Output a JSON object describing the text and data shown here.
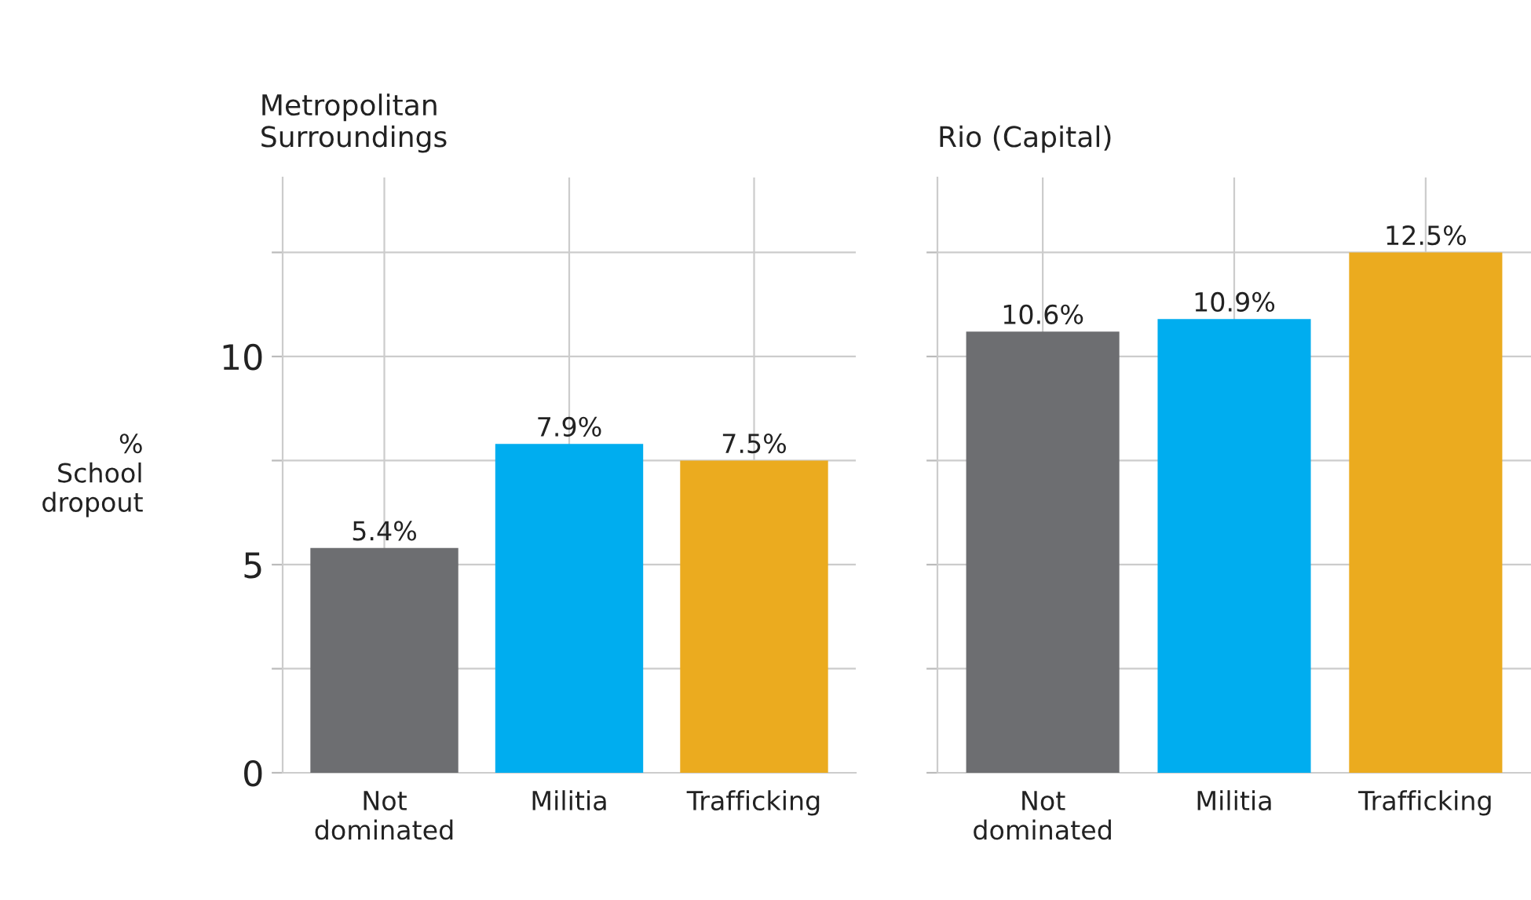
{
  "chart_data": [
    {
      "type": "bar",
      "title": "Metropolitan\nSurroundings",
      "ylabel": "%\nSchool\ndropout",
      "categories": [
        "Not\ndominated",
        "Militia",
        "Trafficking"
      ],
      "values": [
        5.4,
        7.9,
        7.5
      ],
      "colors": [
        "#6d6e71",
        "#00adef",
        "#ebab1f"
      ],
      "value_labels": [
        "5.4%",
        "7.9%",
        "7.5%"
      ],
      "ylim": [
        0,
        14.3
      ],
      "yticks": [
        0,
        {
          "value": 2.5,
          "label": null
        },
        5,
        {
          "value": 7.5,
          "label": null
        },
        10,
        {
          "value": 12.5,
          "label": null
        }
      ],
      "grid": true
    },
    {
      "type": "bar",
      "title": "Rio (Capital)",
      "categories": [
        "Not\ndominated",
        "Militia",
        "Trafficking"
      ],
      "values": [
        10.6,
        10.9,
        12.5
      ],
      "colors": [
        "#6d6e71",
        "#00adef",
        "#ebab1f"
      ],
      "value_labels": [
        "10.6%",
        "10.9%",
        "12.5%"
      ],
      "ylim": [
        0,
        14.3
      ],
      "yticks": [
        0,
        {
          "value": 2.5,
          "label": null
        },
        5,
        {
          "value": 7.5,
          "label": null
        },
        10,
        {
          "value": 12.5,
          "label": null
        }
      ],
      "grid": true,
      "tick_labels": "x"
    }
  ]
}
